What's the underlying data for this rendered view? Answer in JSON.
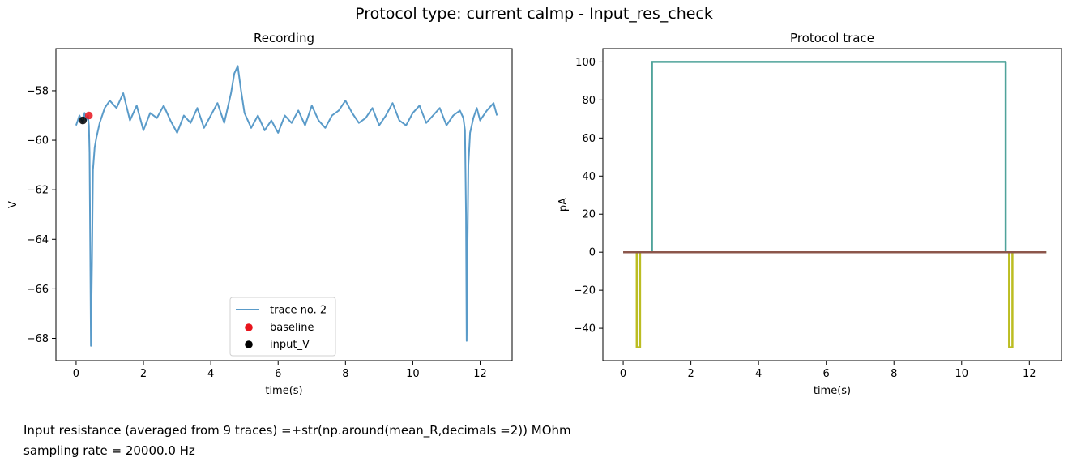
{
  "figure": {
    "suptitle": "Protocol type: current calmp - Input_res_check",
    "notes": {
      "resistance": "Input resistance (averaged from 9 traces) =+str(np.around(mean_R,decimals =2)) MOhm",
      "sampling": "sampling rate = 20000.0 Hz"
    }
  },
  "chart_data": [
    {
      "type": "line",
      "title": "Recording",
      "xlabel": "time(s)",
      "ylabel": "V",
      "xlim": [
        -0.6,
        12.95
      ],
      "ylim": [
        -68.9,
        -56.3
      ],
      "xticks": [
        0,
        2,
        4,
        6,
        8,
        10,
        12
      ],
      "yticks": [
        -68,
        -66,
        -64,
        -62,
        -60,
        -58
      ],
      "legend_position": "lower-center",
      "grid": false,
      "series": [
        {
          "name": "trace no. 2",
          "kind": "line",
          "color": "#5a9bc9",
          "x": [
            0,
            0.1,
            0.2,
            0.25,
            0.3,
            0.35,
            0.38,
            0.4,
            0.42,
            0.44,
            0.47,
            0.5,
            0.55,
            0.6,
            0.7,
            0.85,
            1.0,
            1.2,
            1.4,
            1.6,
            1.8,
            2.0,
            2.2,
            2.4,
            2.6,
            2.8,
            3.0,
            3.2,
            3.4,
            3.6,
            3.8,
            4.0,
            4.2,
            4.4,
            4.6,
            4.7,
            4.8,
            4.9,
            5.0,
            5.2,
            5.4,
            5.6,
            5.8,
            6.0,
            6.2,
            6.4,
            6.6,
            6.8,
            7.0,
            7.2,
            7.4,
            7.6,
            7.8,
            8.0,
            8.2,
            8.4,
            8.6,
            8.8,
            9.0,
            9.2,
            9.4,
            9.6,
            9.8,
            10.0,
            10.2,
            10.4,
            10.6,
            10.8,
            11.0,
            11.2,
            11.4,
            11.5,
            11.55,
            11.58,
            11.6,
            11.62,
            11.65,
            11.7,
            11.8,
            11.9,
            12.0,
            12.2,
            12.4,
            12.5
          ],
          "y": [
            -59.4,
            -59.0,
            -59.3,
            -58.9,
            -59.2,
            -59.0,
            -59.4,
            -60.5,
            -64.5,
            -68.3,
            -65.0,
            -61.2,
            -60.3,
            -59.9,
            -59.3,
            -58.7,
            -58.4,
            -58.7,
            -58.1,
            -59.2,
            -58.6,
            -59.6,
            -58.9,
            -59.1,
            -58.6,
            -59.2,
            -59.7,
            -59.0,
            -59.3,
            -58.7,
            -59.5,
            -59.0,
            -58.5,
            -59.3,
            -58.1,
            -57.3,
            -57.0,
            -58.0,
            -58.9,
            -59.5,
            -59.0,
            -59.6,
            -59.2,
            -59.7,
            -59.0,
            -59.3,
            -58.8,
            -59.4,
            -58.6,
            -59.2,
            -59.5,
            -59.0,
            -58.8,
            -58.4,
            -58.9,
            -59.3,
            -59.1,
            -58.7,
            -59.4,
            -59.0,
            -58.5,
            -59.2,
            -59.4,
            -58.9,
            -58.6,
            -59.3,
            -59.0,
            -58.7,
            -59.4,
            -59.0,
            -58.8,
            -59.1,
            -59.6,
            -63.0,
            -68.1,
            -65.0,
            -61.0,
            -59.7,
            -59.1,
            -58.7,
            -59.2,
            -58.8,
            -58.5,
            -59.0
          ]
        },
        {
          "name": "baseline",
          "kind": "scatter",
          "color": "#e8141c",
          "x": [
            0.38
          ],
          "y": [
            -59.0
          ]
        },
        {
          "name": "input_V",
          "kind": "scatter",
          "color": "#000000",
          "x": [
            0.2
          ],
          "y": [
            -59.2
          ]
        }
      ]
    },
    {
      "type": "line",
      "title": "Protocol trace",
      "xlabel": "time(s)",
      "ylabel": "pA",
      "xlim": [
        -0.6,
        12.95
      ],
      "ylim": [
        -57,
        107
      ],
      "xticks": [
        0,
        2,
        4,
        6,
        8,
        10,
        12
      ],
      "yticks": [
        -40,
        -20,
        0,
        20,
        40,
        60,
        80,
        100
      ],
      "grid": false,
      "series": [
        {
          "kind": "line",
          "color": "#bcbd22",
          "x": [
            0,
            0.4,
            0.4,
            0.5,
            0.5,
            11.4,
            11.4,
            11.5,
            11.5,
            12.5
          ],
          "y": [
            0,
            0,
            -50,
            -50,
            0,
            0,
            -50,
            -50,
            0,
            0
          ]
        },
        {
          "kind": "line",
          "color": "#4fa39a",
          "x": [
            0,
            0.85,
            0.85,
            11.3,
            11.3,
            12.5
          ],
          "y": [
            0,
            0,
            100,
            100,
            0,
            0
          ]
        },
        {
          "kind": "line",
          "color": "#8c564b",
          "x": [
            0,
            12.5
          ],
          "y": [
            0,
            0
          ]
        }
      ]
    }
  ]
}
